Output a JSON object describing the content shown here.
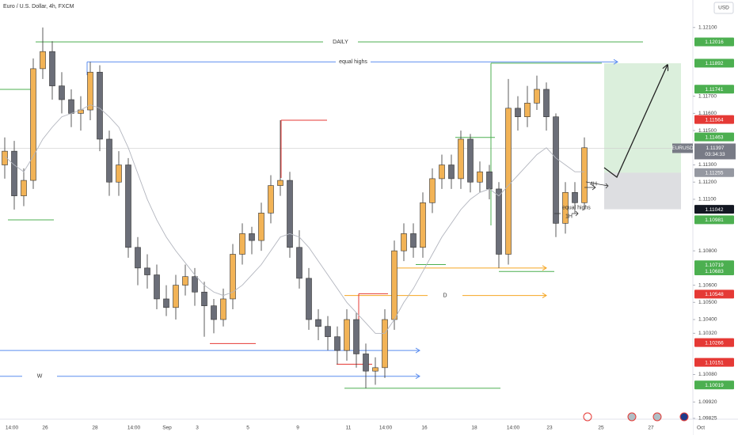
{
  "chart_data": {
    "type": "candlestick",
    "title": "Euro / U.S. Dollar, 4h, FXCM",
    "currency": "USD",
    "ylim": [
      1.0982,
      1.1226
    ],
    "yticks": [
      {
        "value": 1.121,
        "label": "1.12100"
      },
      {
        "value": 1.117,
        "label": "1.11700"
      },
      {
        "value": 1.116,
        "label": "1.11600"
      },
      {
        "value": 1.115,
        "label": "1.11500"
      },
      {
        "value": 1.113,
        "label": "1.11300"
      },
      {
        "value": 1.112,
        "label": "1.11200"
      },
      {
        "value": 1.111,
        "label": "1.11100"
      },
      {
        "value": 1.108,
        "label": "1.10800"
      },
      {
        "value": 1.106,
        "label": "1.10600"
      },
      {
        "value": 1.105,
        "label": "1.10500"
      },
      {
        "value": 1.104,
        "label": "1.10400"
      },
      {
        "value": 1.1032,
        "label": "1.10320"
      },
      {
        "value": 1.1008,
        "label": "1.10080"
      },
      {
        "value": 1.0992,
        "label": "1.09920"
      },
      {
        "value": 1.09825,
        "label": "1.09825"
      }
    ],
    "x_labels": [
      "14:00",
      "26",
      "28",
      "14:00",
      "Sep",
      "3",
      "5",
      "9",
      "11",
      "14:00",
      "16",
      "18",
      "14:00",
      "23",
      "25",
      "27",
      "Oct"
    ],
    "up_color": "#f2b356",
    "down_color": "#6b6e78",
    "open": [
      1.113,
      1.1138,
      1.1112,
      1.1121,
      1.1186,
      1.1196,
      1.1176,
      1.1168,
      1.116,
      1.1162,
      1.1184,
      1.1145,
      1.112,
      1.113,
      1.1082,
      1.107,
      1.1066,
      1.1052,
      1.1047,
      1.106,
      1.1065,
      1.1056,
      1.1048,
      1.104,
      1.1052,
      1.1078,
      1.109,
      1.1086,
      1.1102,
      1.1118,
      1.1121,
      1.1082,
      1.1064,
      1.104,
      1.1036,
      1.103,
      1.1022,
      1.104,
      1.102,
      1.101,
      1.1012,
      1.104,
      1.108,
      1.109,
      1.1082,
      1.1108,
      1.1122,
      1.113,
      1.1122,
      1.1145,
      1.112,
      1.1126,
      1.1116,
      1.1078,
      1.1163,
      1.1158,
      1.1166,
      1.1174,
      1.1158,
      1.1096,
      1.1114,
      1.1108
    ],
    "high": [
      1.1146,
      1.1144,
      1.1128,
      1.1192,
      1.121,
      1.1202,
      1.1184,
      1.1174,
      1.117,
      1.119,
      1.1188,
      1.115,
      1.1138,
      1.1134,
      1.1088,
      1.1078,
      1.1072,
      1.106,
      1.1066,
      1.1072,
      1.107,
      1.1062,
      1.1052,
      1.1058,
      1.1084,
      1.1096,
      1.1094,
      1.1108,
      1.1124,
      1.1156,
      1.1126,
      1.1092,
      1.107,
      1.1046,
      1.1042,
      1.1036,
      1.1046,
      1.1044,
      1.1026,
      1.1018,
      1.1046,
      1.1086,
      1.1096,
      1.1096,
      1.1114,
      1.1128,
      1.1136,
      1.1136,
      1.115,
      1.1148,
      1.1132,
      1.113,
      1.112,
      1.118,
      1.117,
      1.1176,
      1.1182,
      1.1178,
      1.116,
      1.112,
      1.112,
      1.1146
    ],
    "low": [
      1.1122,
      1.1104,
      1.1106,
      1.1116,
      1.118,
      1.1168,
      1.116,
      1.1152,
      1.115,
      1.1156,
      1.1138,
      1.1112,
      1.1112,
      1.1076,
      1.106,
      1.1058,
      1.1046,
      1.1042,
      1.104,
      1.1054,
      1.1048,
      1.103,
      1.1032,
      1.1036,
      1.1046,
      1.1072,
      1.1078,
      1.108,
      1.1096,
      1.1112,
      1.1076,
      1.1058,
      1.1034,
      1.1028,
      1.1022,
      1.1014,
      1.1016,
      1.1012,
      1.1,
      1.1002,
      1.1006,
      1.1034,
      1.1074,
      1.1076,
      1.1076,
      1.1102,
      1.1116,
      1.1116,
      1.1116,
      1.1114,
      1.1114,
      1.111,
      1.107,
      1.1072,
      1.115,
      1.1152,
      1.1162,
      1.115,
      1.1088,
      1.109,
      1.1102,
      1.1104
    ],
    "close": [
      1.1138,
      1.1112,
      1.1121,
      1.1186,
      1.1196,
      1.1176,
      1.1168,
      1.116,
      1.1162,
      1.1184,
      1.1145,
      1.112,
      1.113,
      1.1082,
      1.107,
      1.1066,
      1.1052,
      1.1047,
      1.106,
      1.1065,
      1.1056,
      1.1048,
      1.104,
      1.1052,
      1.1078,
      1.109,
      1.1086,
      1.1102,
      1.1118,
      1.1121,
      1.1082,
      1.1064,
      1.104,
      1.1036,
      1.103,
      1.1022,
      1.104,
      1.102,
      1.101,
      1.1012,
      1.104,
      1.108,
      1.109,
      1.1082,
      1.1108,
      1.1122,
      1.113,
      1.1122,
      1.1145,
      1.112,
      1.1126,
      1.1116,
      1.1078,
      1.1163,
      1.1158,
      1.1166,
      1.1174,
      1.1158,
      1.1096,
      1.1114,
      1.1108,
      1.114
    ],
    "ma": {
      "color": "#b2b5be",
      "values": [
        1.1135,
        1.113,
        1.1126,
        1.1135,
        1.1145,
        1.1152,
        1.1158,
        1.116,
        1.1162,
        1.1165,
        1.1163,
        1.1158,
        1.1152,
        1.114,
        1.1125,
        1.111,
        1.1098,
        1.1088,
        1.108,
        1.1073,
        1.1066,
        1.106,
        1.1056,
        1.1054,
        1.1056,
        1.106,
        1.1066,
        1.1072,
        1.108,
        1.1088,
        1.109,
        1.1088,
        1.1082,
        1.1074,
        1.1066,
        1.1058,
        1.105,
        1.1044,
        1.1038,
        1.1032,
        1.1032,
        1.104,
        1.105,
        1.1058,
        1.1068,
        1.1078,
        1.1088,
        1.1096,
        1.1104,
        1.111,
        1.1114,
        1.1116,
        1.1112,
        1.1118,
        1.1124,
        1.113,
        1.1136,
        1.114,
        1.1134,
        1.113,
        1.1126,
        1.1126
      ]
    },
    "levels": [
      {
        "value": 1.12016,
        "color": "#4caf50",
        "label": "DAILY"
      },
      {
        "value": 1.1174,
        "color": "#4caf50"
      },
      {
        "value": 1.119,
        "color": "#5b8def",
        "label": "equal highs"
      },
      {
        "value": 1.11892,
        "color": "#4caf50"
      },
      {
        "value": 1.1156,
        "color": "#e53935"
      },
      {
        "value": 1.1146,
        "color": "#4caf50"
      },
      {
        "value": 1.1098,
        "color": "#4caf50"
      },
      {
        "value": 1.107,
        "color": "#f5a623"
      },
      {
        "value": 1.1072,
        "color": "#4caf50"
      },
      {
        "value": 1.1068,
        "color": "#4caf50"
      },
      {
        "value": 1.1054,
        "color": "#f5a623",
        "label": "D"
      },
      {
        "value": 1.1055,
        "color": "#e53935"
      },
      {
        "value": 1.1026,
        "color": "#e53935"
      },
      {
        "value": 1.1022,
        "color": "#5b8def"
      },
      {
        "value": 1.1014,
        "color": "#e53935"
      },
      {
        "value": 1.1007,
        "color": "#5b8def",
        "label": "W"
      },
      {
        "value": 1.1,
        "color": "#4caf50"
      }
    ],
    "notes": [
      {
        "label": "4H",
        "value": 1.1119
      },
      {
        "label": "equal highs",
        "value": 1.1105
      },
      {
        "label": "1H",
        "value": 1.11
      }
    ],
    "position": {
      "target": 1.11892,
      "entry": 1.11255,
      "stop": 1.11042
    },
    "last": {
      "symbol": "EURUSD",
      "value": 1.11397,
      "label": "1.11397",
      "countdown": "03:34:33"
    },
    "price_labels": [
      {
        "value": 1.12016,
        "label": "1.12016",
        "color": "#4caf50"
      },
      {
        "value": 1.11892,
        "label": "1.11892",
        "color": "#4caf50"
      },
      {
        "value": 1.11741,
        "label": "1.11741",
        "color": "#4caf50"
      },
      {
        "value": 1.11564,
        "label": "1.11564",
        "color": "#e53935"
      },
      {
        "value": 1.11463,
        "label": "1.11463",
        "color": "#4caf50"
      },
      {
        "value": 1.11255,
        "label": "1.11255",
        "color": "#9598a1"
      },
      {
        "value": 1.11042,
        "label": "1.11042",
        "color": "#131722"
      },
      {
        "value": 1.10981,
        "label": "1.10981",
        "color": "#4caf50"
      },
      {
        "value": 1.10719,
        "label": "1.10719",
        "color": "#4caf50"
      },
      {
        "value": 1.10683,
        "label": "1.10683",
        "color": "#4caf50"
      },
      {
        "value": 1.10548,
        "label": "1.10548",
        "color": "#e53935"
      },
      {
        "value": 1.10266,
        "label": "1.10266",
        "color": "#e53935"
      },
      {
        "value": 1.10151,
        "label": "1.10151",
        "color": "#e53935"
      },
      {
        "value": 1.10019,
        "label": "1.10019",
        "color": "#4caf50"
      }
    ]
  }
}
